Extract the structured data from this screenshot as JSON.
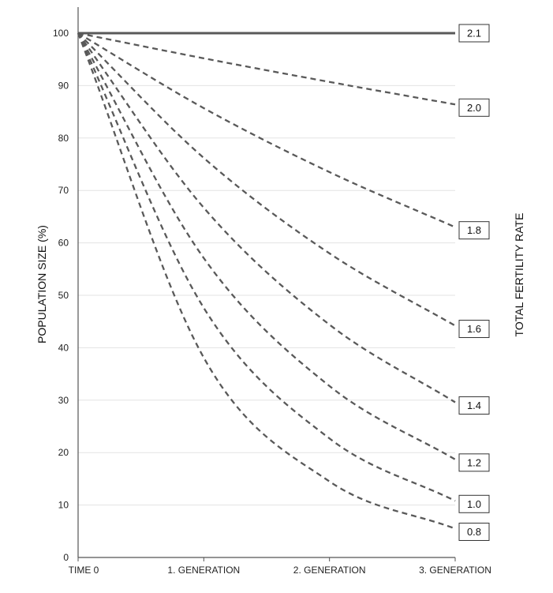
{
  "chart_data": {
    "type": "line",
    "title": "",
    "xlabel": "",
    "ylabel": "POPULATION SIZE (%)",
    "right_label": "TOTAL FERTILITY RATE",
    "categories": [
      "TIME 0",
      "1. GENERATION",
      "2. GENERATION",
      "3. GENERATION"
    ],
    "ylim": [
      0,
      100
    ],
    "yticks": [
      0,
      10,
      20,
      30,
      40,
      50,
      60,
      70,
      80,
      90,
      100
    ],
    "grid": true,
    "series": [
      {
        "name": "2.1",
        "style": "solid",
        "values": [
          100,
          100,
          100,
          100
        ]
      },
      {
        "name": "2.0",
        "style": "dashed",
        "values": [
          100,
          95.2,
          90.7,
          86.4
        ]
      },
      {
        "name": "1.8",
        "style": "dashed",
        "values": [
          100,
          85.7,
          73.5,
          63.0
        ]
      },
      {
        "name": "1.6",
        "style": "dashed",
        "values": [
          100,
          76.2,
          58.0,
          44.2
        ]
      },
      {
        "name": "1.4",
        "style": "dashed",
        "values": [
          100,
          66.7,
          44.4,
          29.6
        ]
      },
      {
        "name": "1.2",
        "style": "dashed",
        "values": [
          100,
          57.1,
          32.7,
          18.7
        ]
      },
      {
        "name": "1.0",
        "style": "dashed",
        "values": [
          100,
          47.6,
          22.7,
          10.8
        ]
      },
      {
        "name": "0.8",
        "style": "dashed",
        "values": [
          100,
          38.1,
          14.5,
          5.5
        ]
      }
    ],
    "colors": {
      "line": "#595959",
      "grid": "#e3e3e3",
      "axis": "#555555",
      "label_border": "#333333"
    }
  }
}
